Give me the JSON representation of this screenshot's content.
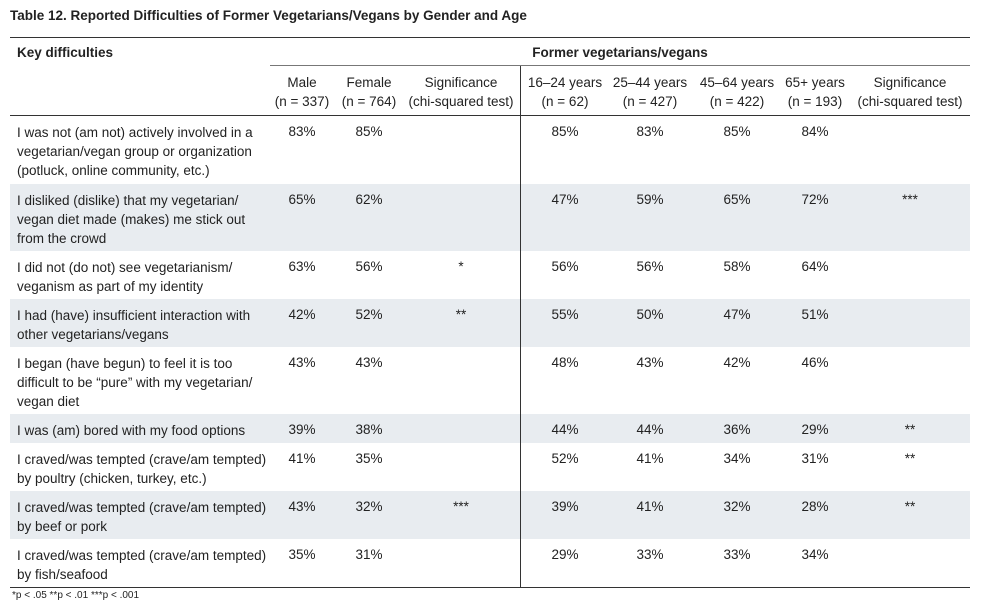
{
  "title": "Table 12. Reported Difficulties of Former Vegetarians/Vegans by Gender and Age",
  "table": {
    "stub_header": "Key difficulties",
    "group_header": "Former vegetarians/vegans",
    "columns": [
      {
        "label": "Male",
        "n": "(n = 337)"
      },
      {
        "label": "Female",
        "n": "(n = 764)"
      },
      {
        "label": "Significance",
        "n": "(chi-squared test)"
      },
      {
        "label": "16–24 years",
        "n": "(n = 62)"
      },
      {
        "label": "25–44 years",
        "n": "(n = 427)"
      },
      {
        "label": "45–64 years",
        "n": "(n = 422)"
      },
      {
        "label": "65+ years",
        "n": "(n = 193)"
      },
      {
        "label": "Significance",
        "n": "(chi-squared test)"
      }
    ],
    "rows": [
      [
        "I was not (am not) actively involved in a vegetarian/vegan group or organization (potluck, online community, etc.)",
        "83%",
        "85%",
        null,
        "85%",
        "83%",
        "85%",
        "84%",
        null
      ],
      [
        "I disliked (dislike) that my vegetarian/ vegan diet made (makes) me stick out from the crowd",
        "65%",
        "62%",
        null,
        "47%",
        "59%",
        "65%",
        "72%",
        "***"
      ],
      [
        "I did not (do not) see vegetarianism/ veganism as part of my identity",
        "63%",
        "56%",
        "*",
        "56%",
        "56%",
        "58%",
        "64%",
        null
      ],
      [
        "I had (have) insufficient interaction with other vegetarians/vegans",
        "42%",
        "52%",
        "**",
        "55%",
        "50%",
        "47%",
        "51%",
        null
      ],
      [
        "I began (have begun) to feel it is too difficult to be “pure” with my vegetarian/ vegan diet",
        "43%",
        "43%",
        null,
        "48%",
        "43%",
        "42%",
        "46%",
        null
      ],
      [
        "I was (am) bored with my food options",
        "39%",
        "38%",
        null,
        "44%",
        "44%",
        "36%",
        "29%",
        "**"
      ],
      [
        "I craved/was tempted (crave/am tempted) by poultry (chicken, turkey, etc.)",
        "41%",
        "35%",
        null,
        "52%",
        "41%",
        "34%",
        "31%",
        "**"
      ],
      [
        "I craved/was tempted (crave/am tempted) by beef or pork",
        "43%",
        "32%",
        "***",
        "39%",
        "41%",
        "32%",
        "28%",
        "**"
      ],
      [
        "I craved/was tempted (crave/am tempted) by fish/seafood",
        "35%",
        "31%",
        null,
        "29%",
        "33%",
        "33%",
        "34%",
        null
      ]
    ]
  },
  "footnote": "*p < .05 **p < .01 ***p < .001"
}
